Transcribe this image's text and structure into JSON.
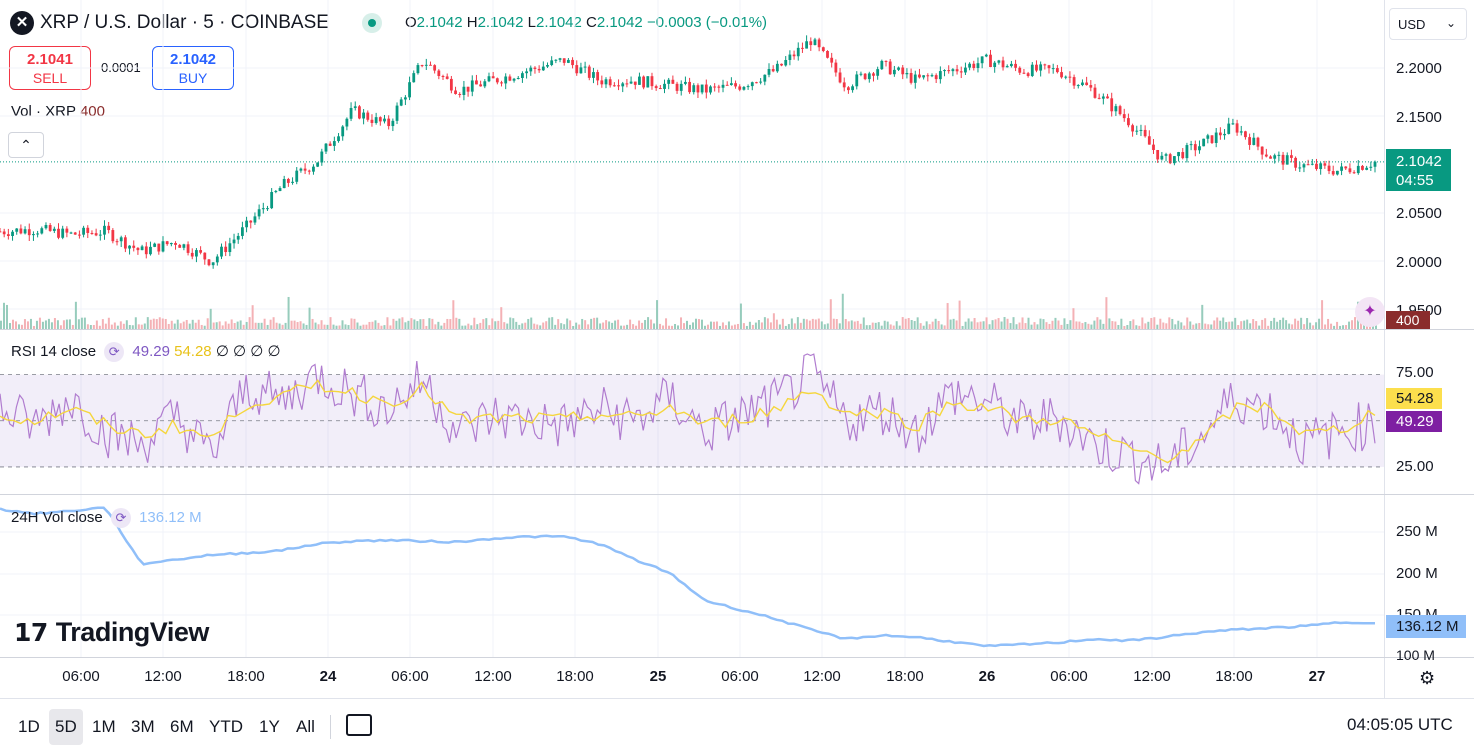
{
  "header": {
    "symbol_icon": "xrp-logo-icon",
    "symbol_title": "XRP / U.S. Dollar · 5 · COINBASE",
    "ohlc": {
      "o_label": "O",
      "o": "2.1042",
      "h_label": "H",
      "h": "2.1042",
      "l_label": "L",
      "l": "2.1042",
      "c_label": "C",
      "c": "2.1042",
      "change": "−0.0003 (−0.01%)"
    },
    "currency": "USD"
  },
  "trade": {
    "sell_price": "2.1041",
    "sell_label": "SELL",
    "spread": "0.0001",
    "buy_price": "2.1042",
    "buy_label": "BUY"
  },
  "volume_legend": {
    "label": "Vol · XRP",
    "value": "400"
  },
  "price_axis": {
    "labels": [
      "2.2000",
      "2.1500",
      "2.0500",
      "2.0000",
      "1.9500"
    ],
    "current_price": "2.1042",
    "countdown": "04:55",
    "volume_tag": "400"
  },
  "rsi": {
    "label": "RSI 14 close",
    "rsi_value": "49.29",
    "ma_value": "54.28",
    "extra": "∅ ∅ ∅ ∅",
    "axis": [
      "75.00",
      "25.00"
    ],
    "tag_ma": "54.28",
    "tag_rsi": "49.29"
  },
  "vol24": {
    "label": "24H Vol close",
    "value": "136.12 M",
    "axis": [
      "250 M",
      "200 M",
      "150 M",
      "100 M"
    ],
    "tag": "136.12 M"
  },
  "time_axis": [
    "06:00",
    "12:00",
    "18:00",
    "24",
    "06:00",
    "12:00",
    "18:00",
    "25",
    "06:00",
    "12:00",
    "18:00",
    "26",
    "06:00",
    "12:00",
    "18:00",
    "27"
  ],
  "bottom": {
    "ranges": [
      "1D",
      "5D",
      "1M",
      "3M",
      "6M",
      "YTD",
      "1Y",
      "All"
    ],
    "active_range": "5D",
    "clock": "04:05:05 UTC"
  },
  "branding": {
    "logo_text": "TradingView"
  },
  "colors": {
    "up": "#089981",
    "down": "#f23645",
    "rsi": "#b07ccf",
    "rsi_ma": "#f5d63d",
    "vol24": "#90bff9"
  },
  "chart_data": [
    {
      "type": "line",
      "title": "XRP / U.S. Dollar · 5 · COINBASE",
      "xlabel": "",
      "ylabel": "",
      "x": [
        "23 03:00",
        "23 06:00",
        "23 09:00",
        "23 12:00",
        "23 15:00",
        "23 17:00",
        "23 18:00",
        "23 20:00",
        "23 21:00",
        "23 22:00",
        "24 00:00",
        "24 03:00",
        "24 06:00",
        "24 09:00",
        "24 12:00",
        "24 15:00",
        "24 18:00",
        "24 21:00",
        "25 00:00",
        "25 03:00",
        "25 06:00",
        "25 09:00",
        "25 12:00",
        "25 13:00",
        "25 15:00",
        "25 18:00",
        "25 21:00",
        "26 00:00",
        "26 03:00",
        "26 06:00",
        "26 09:00",
        "26 12:00",
        "26 14:00",
        "26 16:00",
        "26 18:00",
        "26 20:00",
        "26 22:00",
        "27 00:00",
        "27 02:00",
        "27 04:00"
      ],
      "series": [
        {
          "values": [
            2.035,
            2.037,
            2.032,
            2.035,
            2.015,
            2.025,
            2.005,
            2.04,
            2.08,
            2.105,
            2.155,
            2.14,
            2.205,
            2.175,
            2.185,
            2.195,
            2.205,
            2.185,
            2.185,
            2.18,
            2.175,
            2.18,
            2.195,
            2.225,
            2.18,
            2.2,
            2.185,
            2.195,
            2.205,
            2.195,
            2.195,
            2.175,
            2.145,
            2.105,
            2.12,
            2.14,
            2.11,
            2.1,
            2.095,
            2.104
          ]
        }
      ],
      "ylim": [
        1.945,
        2.235
      ]
    },
    {
      "type": "line",
      "title": "RSI 14 close",
      "series": [
        {
          "name": "RSI",
          "values": [
            55,
            48,
            60,
            45,
            40,
            52,
            35,
            65,
            58,
            70,
            62,
            55,
            68,
            45,
            52,
            50,
            48,
            55,
            50,
            60,
            45,
            52,
            58,
            70,
            50,
            55,
            45,
            62,
            58,
            48,
            52,
            40,
            35,
            30,
            42,
            60,
            55,
            40,
            45,
            49.29
          ]
        },
        {
          "name": "MA",
          "values": [
            52,
            50,
            55,
            48,
            44,
            48,
            42,
            58,
            60,
            66,
            62,
            58,
            64,
            50,
            51,
            51,
            50,
            53,
            51,
            56,
            48,
            51,
            55,
            64,
            53,
            54,
            48,
            58,
            56,
            50,
            51,
            44,
            38,
            34,
            40,
            55,
            56,
            44,
            46,
            54.28
          ]
        }
      ],
      "ylim": [
        20,
        85
      ]
    },
    {
      "type": "line",
      "title": "24H Vol close",
      "series": [
        {
          "values": [
            260,
            255,
            258,
            262,
            200,
            205,
            210,
            212,
            215,
            222,
            225,
            226,
            225,
            224,
            228,
            230,
            230,
            222,
            205,
            190,
            160,
            150,
            140,
            128,
            118,
            122,
            120,
            115,
            110,
            112,
            114,
            118,
            116,
            120,
            125,
            128,
            130,
            132,
            136,
            136.12
          ]
        }
      ],
      "ylim": [
        95,
        270
      ]
    }
  ]
}
